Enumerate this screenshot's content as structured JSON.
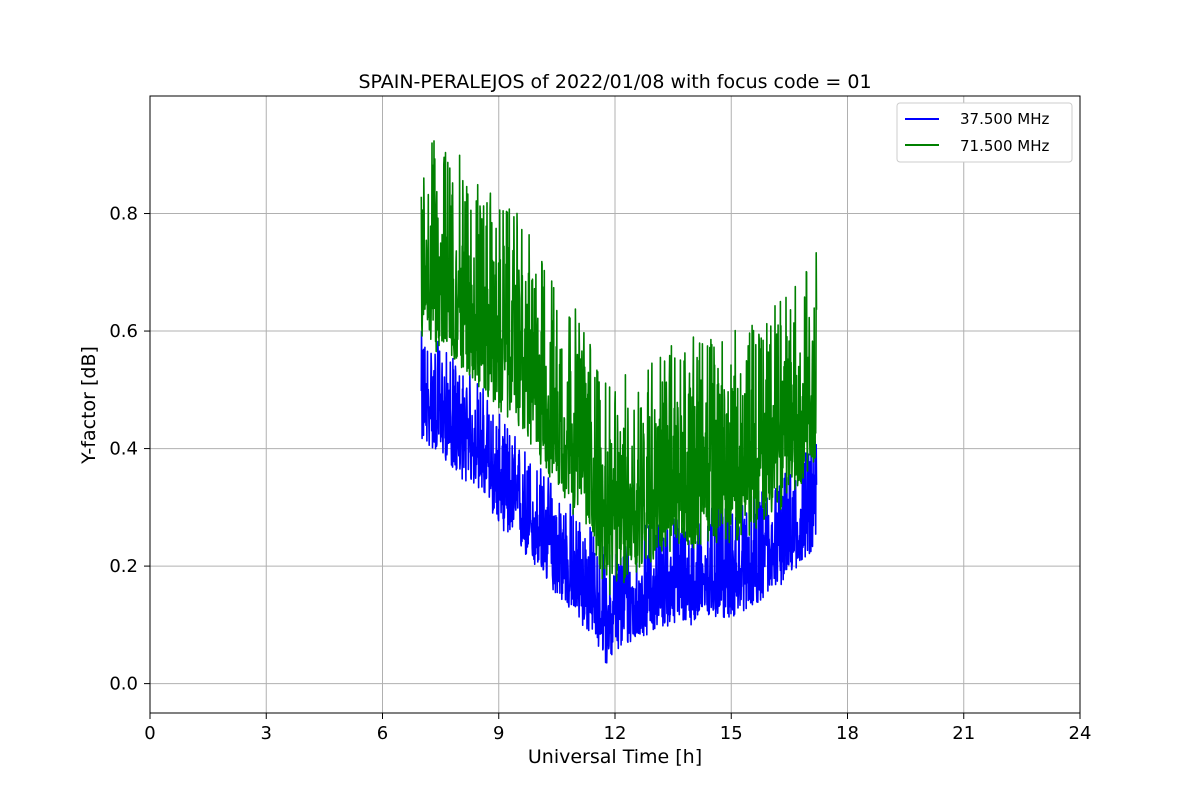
{
  "chart_data": {
    "type": "line",
    "title": "SPAIN-PERALEJOS of 2022/01/08 with focus code = 01",
    "xlabel": "Universal Time [h]",
    "ylabel": "Y-factor [dB]",
    "xlim": [
      0,
      24
    ],
    "ylim": [
      -0.05,
      1.0
    ],
    "xticks": [
      0,
      3,
      6,
      9,
      12,
      15,
      18,
      21,
      24
    ],
    "yticks": [
      0.0,
      0.2,
      0.4,
      0.6,
      0.8
    ],
    "xtick_labels": [
      "0",
      "3",
      "6",
      "9",
      "12",
      "15",
      "18",
      "21",
      "24"
    ],
    "ytick_labels": [
      "0.0",
      "0.2",
      "0.4",
      "0.6",
      "0.8"
    ],
    "grid": true,
    "legend_position": "top-right",
    "series": [
      {
        "name": "37.500 MHz",
        "color": "#0000ff",
        "x": [
          7.0,
          7.5,
          8.0,
          8.5,
          9.0,
          9.5,
          10.0,
          10.5,
          11.0,
          11.5,
          11.8,
          12.0,
          12.5,
          13.0,
          13.5,
          14.0,
          14.5,
          15.0,
          15.5,
          16.0,
          16.5,
          17.0,
          17.2
        ],
        "y": [
          0.48,
          0.46,
          0.42,
          0.4,
          0.34,
          0.3,
          0.26,
          0.22,
          0.18,
          0.14,
          0.1,
          0.12,
          0.14,
          0.16,
          0.17,
          0.17,
          0.18,
          0.18,
          0.2,
          0.22,
          0.25,
          0.29,
          0.3
        ]
      },
      {
        "name": "71.500 MHz",
        "color": "#008000",
        "x": [
          7.0,
          7.5,
          8.0,
          8.5,
          9.0,
          9.5,
          10.0,
          10.5,
          11.0,
          11.5,
          11.8,
          12.0,
          12.5,
          13.0,
          13.5,
          14.0,
          14.5,
          15.0,
          15.5,
          16.0,
          16.5,
          17.0,
          17.2
        ],
        "y": [
          0.7,
          0.68,
          0.66,
          0.62,
          0.58,
          0.56,
          0.5,
          0.45,
          0.4,
          0.34,
          0.26,
          0.28,
          0.3,
          0.33,
          0.34,
          0.35,
          0.36,
          0.36,
          0.37,
          0.4,
          0.43,
          0.48,
          0.5
        ]
      }
    ]
  }
}
